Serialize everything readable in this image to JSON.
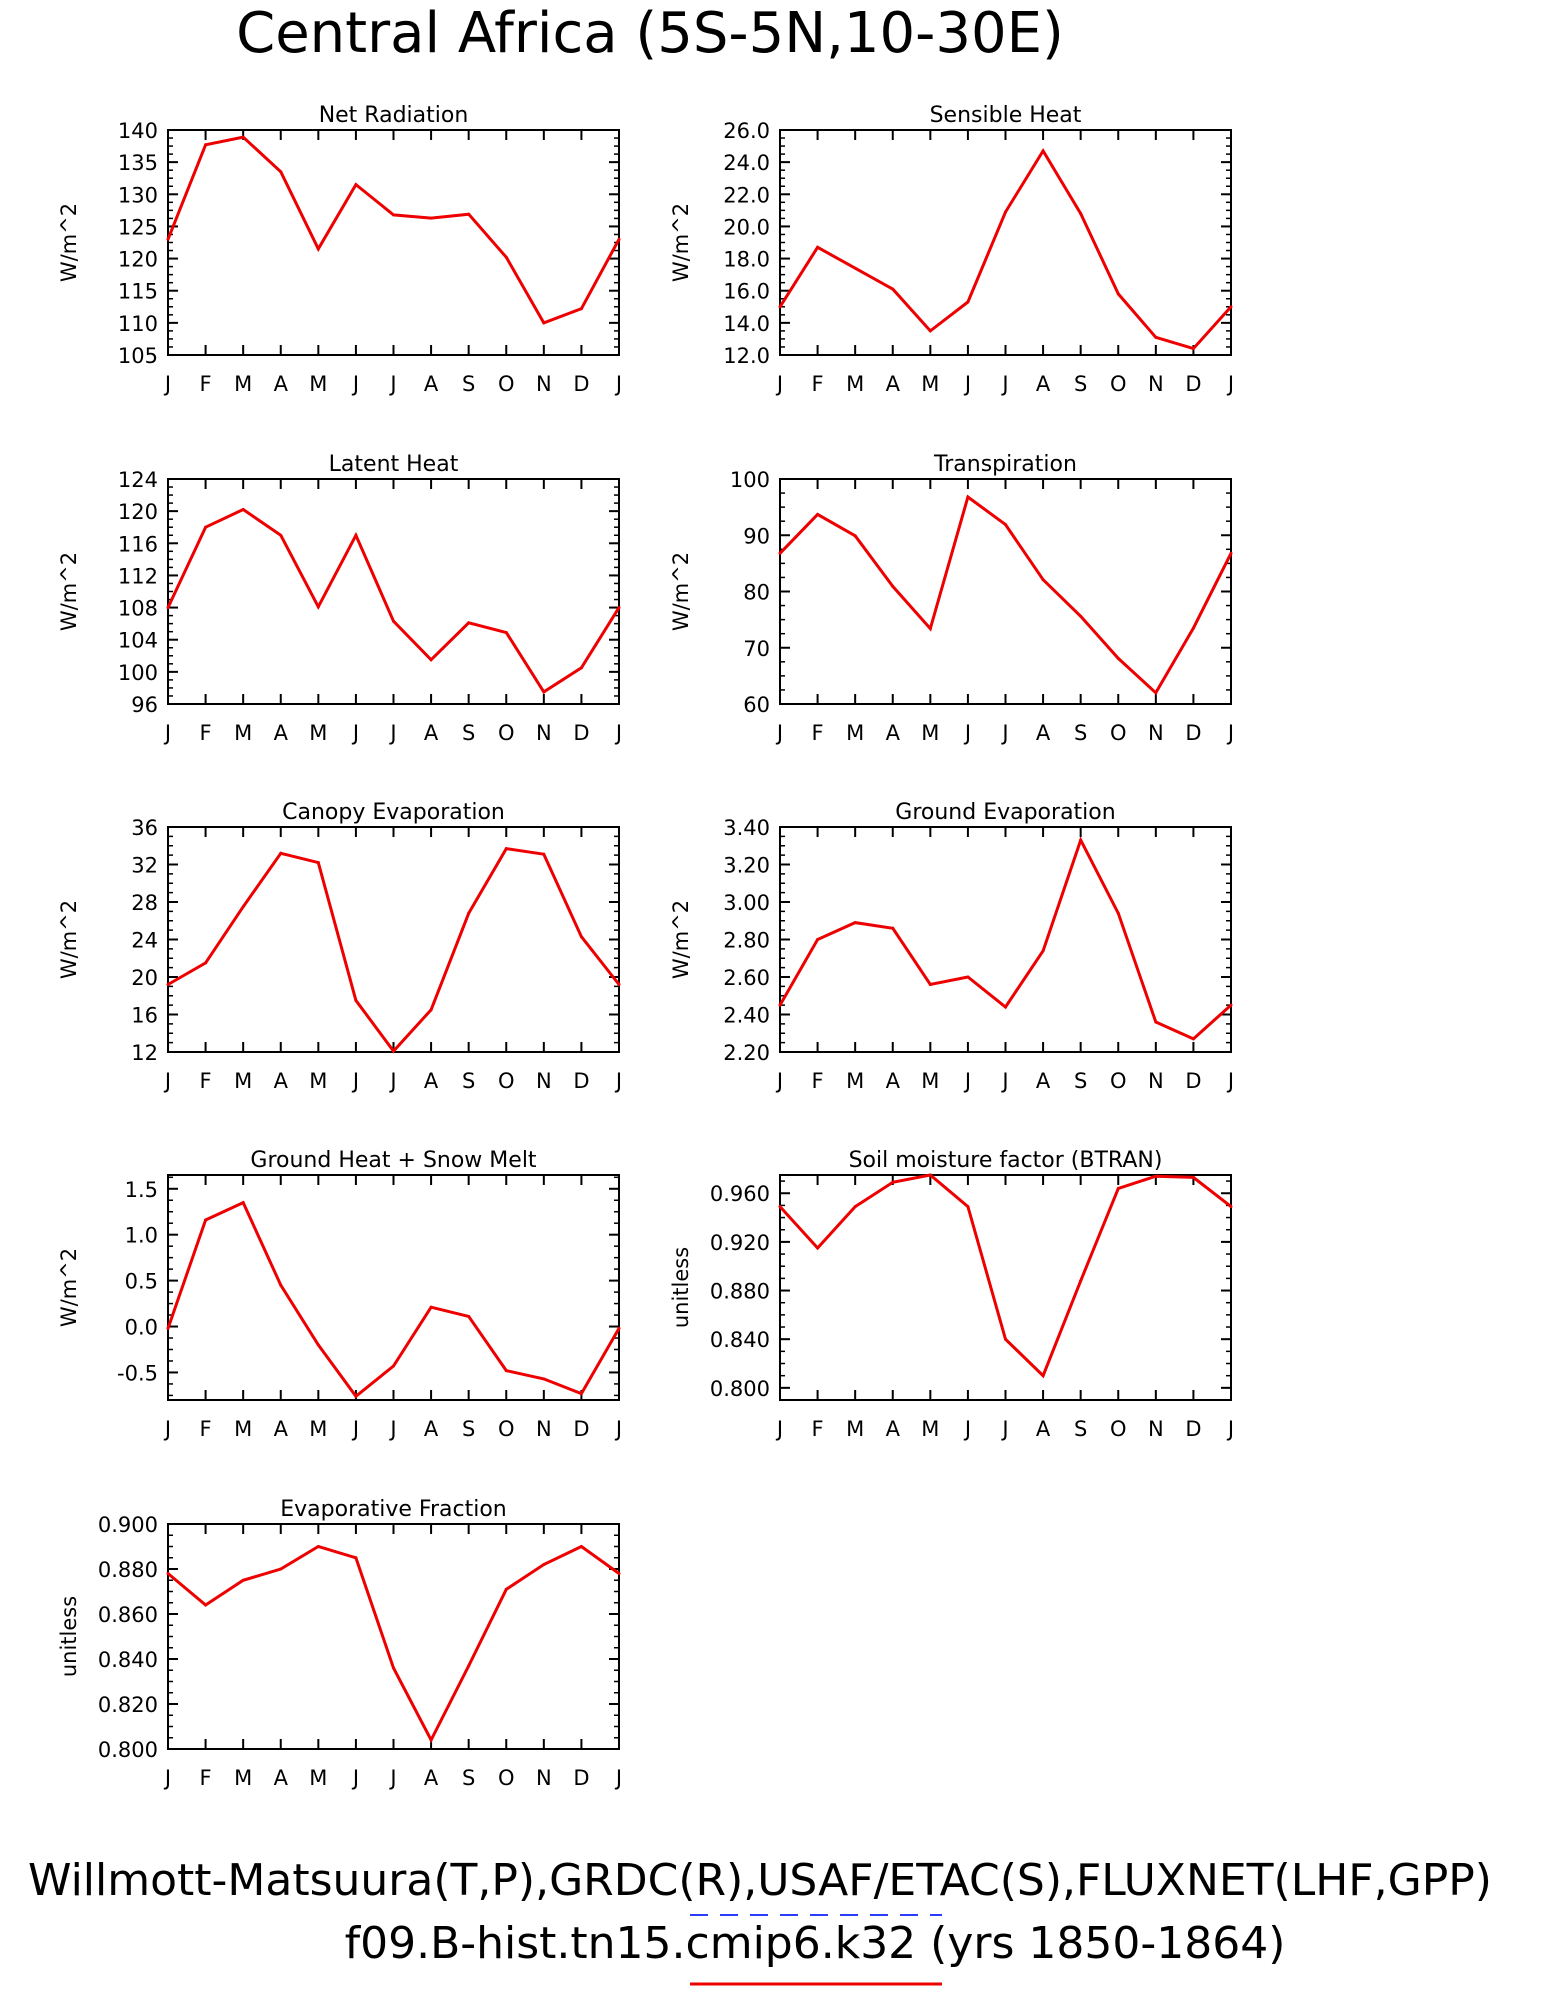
{
  "figure": {
    "title": "Central Africa (5S-5N,10-30E)",
    "footer": {
      "line1": "Willmott-Matsuura(T,P),GRDC(R),USAF/ETAC(S),FLUXNET(LHF,GPP)",
      "line2": "f09.B-hist.tn15.cmip6.k32 (yrs 1850-1864)",
      "line1_underline_color": "#2a3cff",
      "line2_underline_color": "#ee0000"
    }
  },
  "chart_data": [
    {
      "type": "line",
      "title": "Net Radiation",
      "ylabel": "W/m^2",
      "categories": [
        "J",
        "F",
        "M",
        "A",
        "M",
        "J",
        "J",
        "A",
        "S",
        "O",
        "N",
        "D",
        "J"
      ],
      "ylim": [
        105,
        140
      ],
      "yticks": [
        "105",
        "110",
        "115",
        "120",
        "125",
        "130",
        "135",
        "140"
      ],
      "values": [
        123,
        137.7,
        138.9,
        133.5,
        121.5,
        131.5,
        126.8,
        126.3,
        126.9,
        120.2,
        110,
        112.2,
        123
      ],
      "color": "#ee0000"
    },
    {
      "type": "line",
      "title": "Sensible Heat",
      "ylabel": "W/m^2",
      "categories": [
        "J",
        "F",
        "M",
        "A",
        "M",
        "J",
        "J",
        "A",
        "S",
        "O",
        "N",
        "D",
        "J"
      ],
      "ylim": [
        12,
        26
      ],
      "yticks": [
        "12.0",
        "14.0",
        "16.0",
        "18.0",
        "20.0",
        "22.0",
        "24.0",
        "26.0"
      ],
      "values": [
        15,
        18.7,
        17.4,
        16.1,
        13.5,
        15.3,
        20.9,
        24.7,
        20.8,
        15.8,
        13.1,
        12.4,
        15
      ],
      "color": "#ee0000"
    },
    {
      "type": "line",
      "title": "Latent Heat",
      "ylabel": "W/m^2",
      "categories": [
        "J",
        "F",
        "M",
        "A",
        "M",
        "J",
        "J",
        "A",
        "S",
        "O",
        "N",
        "D",
        "J"
      ],
      "ylim": [
        96,
        124
      ],
      "yticks": [
        "96",
        "100",
        "104",
        "108",
        "112",
        "116",
        "120",
        "124"
      ],
      "values": [
        108,
        118,
        120.2,
        117,
        108.1,
        117,
        106.3,
        101.5,
        106.1,
        104.9,
        97.5,
        100.5,
        108
      ],
      "color": "#ee0000"
    },
    {
      "type": "line",
      "title": "Transpiration",
      "ylabel": "W/m^2",
      "categories": [
        "J",
        "F",
        "M",
        "A",
        "M",
        "J",
        "J",
        "A",
        "S",
        "O",
        "N",
        "D",
        "J"
      ],
      "ylim": [
        60,
        100
      ],
      "yticks": [
        "60",
        "70",
        "80",
        "90",
        "100"
      ],
      "values": [
        86.8,
        93.7,
        89.9,
        80.9,
        73.4,
        96.8,
        91.9,
        82.1,
        75.6,
        68.1,
        62,
        73.5,
        86.8
      ],
      "color": "#ee0000"
    },
    {
      "type": "line",
      "title": "Canopy Evaporation",
      "ylabel": "W/m^2",
      "categories": [
        "J",
        "F",
        "M",
        "A",
        "M",
        "J",
        "J",
        "A",
        "S",
        "O",
        "N",
        "D",
        "J"
      ],
      "ylim": [
        12,
        36
      ],
      "yticks": [
        "12",
        "16",
        "20",
        "24",
        "28",
        "32",
        "36"
      ],
      "values": [
        19.2,
        21.5,
        27.5,
        33.2,
        32.2,
        17.5,
        12.1,
        16.5,
        26.8,
        33.7,
        33.1,
        24.3,
        19.2
      ],
      "color": "#ee0000"
    },
    {
      "type": "line",
      "title": "Ground Evaporation",
      "ylabel": "W/m^2",
      "categories": [
        "J",
        "F",
        "M",
        "A",
        "M",
        "J",
        "J",
        "A",
        "S",
        "O",
        "N",
        "D",
        "J"
      ],
      "ylim": [
        2.2,
        3.4
      ],
      "yticks": [
        "2.20",
        "2.40",
        "2.60",
        "2.80",
        "3.00",
        "3.20",
        "3.40"
      ],
      "values": [
        2.45,
        2.8,
        2.89,
        2.86,
        2.56,
        2.6,
        2.44,
        2.74,
        3.33,
        2.94,
        2.36,
        2.27,
        2.45
      ],
      "color": "#ee0000"
    },
    {
      "type": "line",
      "title": "Ground Heat + Snow Melt",
      "ylabel": "W/m^2",
      "categories": [
        "J",
        "F",
        "M",
        "A",
        "M",
        "J",
        "J",
        "A",
        "S",
        "O",
        "N",
        "D",
        "J"
      ],
      "ylim": [
        -0.8,
        1.65
      ],
      "yticks": [
        "-0.5",
        "0.0",
        "0.5",
        "1.0",
        "1.5"
      ],
      "ytick_values": [
        -0.5,
        0,
        0.5,
        1,
        1.5
      ],
      "values": [
        -0.02,
        1.16,
        1.35,
        0.45,
        -0.2,
        -0.76,
        -0.43,
        0.21,
        0.11,
        -0.48,
        -0.57,
        -0.73,
        -0.02
      ],
      "color": "#ee0000"
    },
    {
      "type": "line",
      "title": "Soil moisture factor (BTRAN)",
      "ylabel": "unitless",
      "categories": [
        "J",
        "F",
        "M",
        "A",
        "M",
        "J",
        "J",
        "A",
        "S",
        "O",
        "N",
        "D",
        "J"
      ],
      "ylim": [
        0.79,
        0.975
      ],
      "yticks": [
        "0.800",
        "0.840",
        "0.880",
        "0.920",
        "0.960"
      ],
      "ytick_values": [
        0.8,
        0.84,
        0.88,
        0.92,
        0.96
      ],
      "values": [
        0.949,
        0.915,
        0.949,
        0.969,
        0.975,
        0.949,
        0.84,
        0.81,
        0.888,
        0.964,
        0.974,
        0.973,
        0.949
      ],
      "color": "#ee0000"
    },
    {
      "type": "line",
      "title": "Evaporative Fraction",
      "ylabel": "unitless",
      "categories": [
        "J",
        "F",
        "M",
        "A",
        "M",
        "J",
        "J",
        "A",
        "S",
        "O",
        "N",
        "D",
        "J"
      ],
      "ylim": [
        0.8,
        0.9
      ],
      "yticks": [
        "0.800",
        "0.820",
        "0.840",
        "0.860",
        "0.880",
        "0.900"
      ],
      "values": [
        0.878,
        0.864,
        0.875,
        0.88,
        0.89,
        0.885,
        0.836,
        0.804,
        0.837,
        0.871,
        0.882,
        0.89,
        0.878
      ],
      "color": "#ee0000"
    }
  ]
}
